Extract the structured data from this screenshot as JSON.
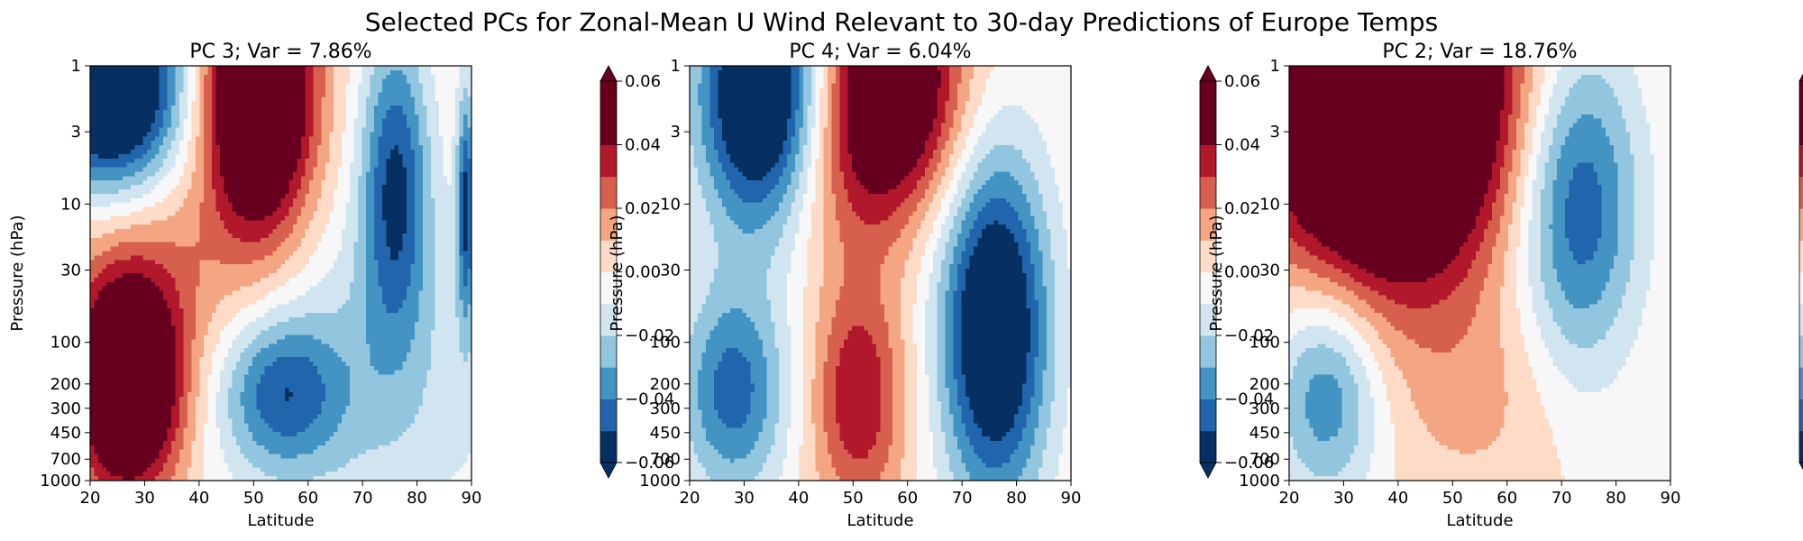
{
  "figure": {
    "suptitle": "Selected PCs for Zonal-Mean U Wind Relevant to 30-day Predictions of Europe Temps"
  },
  "colormap": {
    "name": "RdBu_r",
    "levels": [
      -0.06,
      -0.05,
      -0.04,
      -0.03,
      -0.02,
      -0.01,
      0.0,
      0.01,
      0.02,
      0.03,
      0.04,
      0.05,
      0.06
    ],
    "bin_colors": [
      "#053061",
      "#2166ac",
      "#4393c3",
      "#92c5de",
      "#d1e5f0",
      "#f7f7f7",
      "#fddbc7",
      "#f4a582",
      "#d6604d",
      "#b2182b",
      "#67001f",
      "#67001f"
    ],
    "under_color": "#053061",
    "over_color": "#67001f",
    "ticks": [
      "−0.06",
      "−0.04",
      "−0.02",
      "0.00",
      "0.02",
      "0.04",
      "0.06"
    ],
    "tick_values": [
      -0.06,
      -0.04,
      -0.02,
      0.0,
      0.02,
      0.04,
      0.06
    ]
  },
  "chart_data": [
    {
      "type": "heatmap",
      "title": "PC 3; Var = 7.86%",
      "xlabel": "Latitude",
      "ylabel": "Pressure (hPa)",
      "xlim": [
        20,
        90
      ],
      "ylim": [
        1000,
        1
      ],
      "yscale": "log",
      "xticks": [
        "20",
        "30",
        "40",
        "50",
        "60",
        "70",
        "80",
        "90"
      ],
      "yticks": [
        "1",
        "3",
        "10",
        "30",
        "100",
        "200",
        "300",
        "450",
        "700",
        "1000"
      ],
      "features": [
        {
          "lat": 24,
          "p": 1.4,
          "value": -0.09,
          "dlat": 9,
          "dlogp": 0.55
        },
        {
          "lat": 51,
          "p": 1.5,
          "value": 0.09,
          "dlat": 7,
          "dlogp": 0.75
        },
        {
          "lat": 76,
          "p": 7,
          "value": -0.05,
          "dlat": 4.5,
          "dlogp": 0.8
        },
        {
          "lat": 27,
          "p": 220,
          "value": 0.08,
          "dlat": 7,
          "dlogp": 0.55
        },
        {
          "lat": 30,
          "p": 30,
          "value": 0.02,
          "dlat": 12,
          "dlogp": 0.6
        },
        {
          "lat": 55,
          "p": 230,
          "value": -0.04,
          "dlat": 8,
          "dlogp": 0.4
        },
        {
          "lat": 72,
          "p": 200,
          "value": -0.018,
          "dlat": 18,
          "dlogp": 0.9
        },
        {
          "lat": 89,
          "p": 10,
          "value": -0.05,
          "dlat": 1.2,
          "dlogp": 0.6
        }
      ]
    },
    {
      "type": "heatmap",
      "title": "PC 4; Var = 6.04%",
      "xlabel": "Latitude",
      "ylabel": "Pressure (hPa)",
      "xlim": [
        20,
        90
      ],
      "ylim": [
        1000,
        1
      ],
      "yscale": "log",
      "xticks": [
        "20",
        "30",
        "40",
        "50",
        "60",
        "70",
        "80",
        "90"
      ],
      "yticks": [
        "1",
        "3",
        "10",
        "30",
        "100",
        "200",
        "300",
        "450",
        "700",
        "1000"
      ],
      "features": [
        {
          "lat": 33,
          "p": 1.6,
          "value": -0.08,
          "dlat": 8,
          "dlogp": 0.7
        },
        {
          "lat": 57,
          "p": 1.4,
          "value": 0.07,
          "dlat": 9,
          "dlogp": 0.6
        },
        {
          "lat": 76,
          "p": 80,
          "value": -0.075,
          "dlat": 7,
          "dlogp": 0.9
        },
        {
          "lat": 28,
          "p": 230,
          "value": -0.045,
          "dlat": 7,
          "dlogp": 0.55
        },
        {
          "lat": 51,
          "p": 250,
          "value": 0.04,
          "dlat": 6,
          "dlogp": 0.6
        },
        {
          "lat": 48,
          "p": 8,
          "value": 0.015,
          "dlat": 9,
          "dlogp": 0.5
        }
      ]
    },
    {
      "type": "heatmap",
      "title": "PC 2; Var = 18.76%",
      "xlabel": "Latitude",
      "ylabel": "Pressure (hPa)",
      "xlim": [
        20,
        90
      ],
      "ylim": [
        1000,
        1
      ],
      "yscale": "log",
      "xticks": [
        "20",
        "30",
        "40",
        "50",
        "60",
        "70",
        "80",
        "90"
      ],
      "yticks": [
        "1",
        "3",
        "10",
        "30",
        "100",
        "200",
        "300",
        "450",
        "700",
        "1000"
      ],
      "features": [
        {
          "lat": 38,
          "p": 1.6,
          "value": 0.13,
          "dlat": 15,
          "dlogp": 0.9
        },
        {
          "lat": 73,
          "p": 10,
          "value": -0.05,
          "dlat": 8,
          "dlogp": 0.85
        },
        {
          "lat": 27,
          "p": 230,
          "value": -0.04,
          "dlat": 7,
          "dlogp": 0.55
        },
        {
          "lat": 55,
          "p": 250,
          "value": 0.012,
          "dlat": 12,
          "dlogp": 0.55
        }
      ]
    }
  ]
}
